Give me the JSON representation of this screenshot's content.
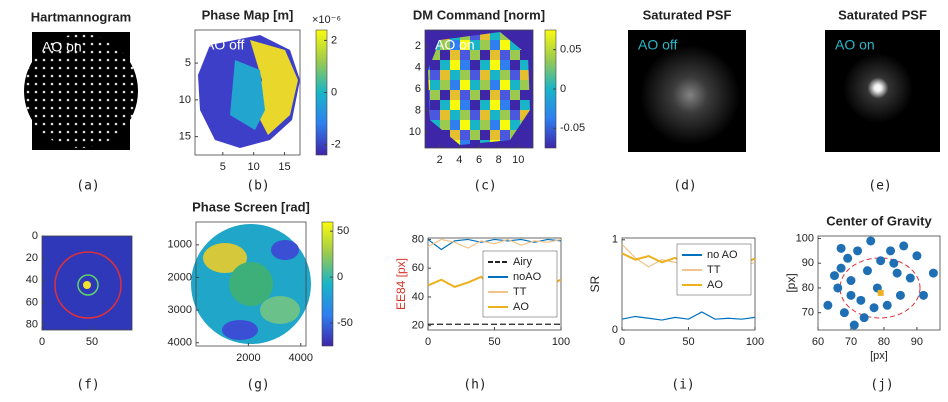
{
  "panels": [
    {
      "title": "Hartmannogram",
      "annotation": "AO on",
      "annotation_color": "#ffffff",
      "caption": "(a)"
    },
    {
      "title": "Phase Map [m]",
      "annotation": "AO off",
      "annotation_color": "#ffffff",
      "scale_label": "×10⁻⁶",
      "xlim": [
        0.5,
        17.5
      ],
      "xticks": [
        5,
        10,
        15
      ],
      "ylim": [
        0.5,
        17.5
      ],
      "yticks": [
        5,
        10,
        15
      ],
      "y_reversed": true,
      "clim": [
        -2.4,
        2.4
      ],
      "cticks": [
        2,
        0,
        -2
      ],
      "caption": "(b)"
    },
    {
      "title": "DM Command [norm]",
      "annotation": "AO on",
      "annotation_color": "#ffffff",
      "xlim": [
        0.5,
        11.5
      ],
      "xticks": [
        2,
        4,
        6,
        8,
        10
      ],
      "ylim": [
        0.5,
        11.5
      ],
      "yticks": [
        2,
        4,
        6,
        8,
        10
      ],
      "y_reversed": true,
      "clim": [
        -0.075,
        0.075
      ],
      "cticks": [
        0.05,
        0,
        -0.05
      ],
      "caption": "(c)"
    },
    {
      "title": "Saturated PSF",
      "annotation": "AO off",
      "annotation_color": "#2ab7c9",
      "caption": "(d)"
    },
    {
      "title": "Saturated PSF",
      "annotation": "AO on",
      "annotation_color": "#2ab7c9",
      "caption": "(e)"
    },
    {
      "xlim": [
        0,
        90
      ],
      "xticks": [
        0,
        50
      ],
      "ylim": [
        0,
        85
      ],
      "yticks": [
        0,
        20,
        40,
        60,
        80
      ],
      "y_reversed": true,
      "caption": "(f)"
    },
    {
      "title": "Phase Screen [rad]",
      "xlim": [
        0,
        4200
      ],
      "xticks": [
        2000,
        4000
      ],
      "ylim": [
        300,
        4100
      ],
      "yticks": [
        1000,
        2000,
        3000,
        4000
      ],
      "y_reversed": true,
      "clim": [
        -75,
        60
      ],
      "cticks": [
        50,
        0,
        -50
      ],
      "caption": "(g)"
    },
    {
      "type": "line",
      "ylabel": "EE84 [px]",
      "ylabel_color": "#d9352a",
      "xlim": [
        0,
        100
      ],
      "xticks": [
        0,
        50,
        100
      ],
      "ylim": [
        17,
        81
      ],
      "yticks": [
        20,
        40,
        60,
        80
      ],
      "legend": "right",
      "x": [
        0,
        10,
        20,
        30,
        40,
        50,
        60,
        70,
        80,
        90,
        100
      ],
      "series": [
        {
          "name": "Airy",
          "color": "#222222",
          "dashed": true,
          "values": [
            21,
            21,
            21,
            21,
            21,
            21,
            21,
            21,
            21,
            21,
            21
          ]
        },
        {
          "name": "noAO",
          "color": "#0072BD",
          "values": [
            80,
            73,
            79,
            80,
            78,
            80,
            79,
            80,
            78,
            80,
            79
          ]
        },
        {
          "name": "TT",
          "color": "#F2C38A",
          "values": [
            75,
            80,
            78,
            74,
            79,
            77,
            80,
            76,
            79,
            78,
            80
          ]
        },
        {
          "name": "AO",
          "color": "#EDB120",
          "values": [
            48,
            52,
            47,
            50,
            54,
            46,
            51,
            49,
            53,
            48,
            52
          ]
        }
      ],
      "caption": "(h)"
    },
    {
      "type": "line",
      "ylabel": "SR",
      "ylabel_color": "#222222",
      "xlim": [
        0,
        100
      ],
      "xticks": [
        0,
        50,
        100
      ],
      "ylim": [
        0,
        1.02
      ],
      "yticks": [
        0,
        1
      ],
      "legend": "upper right",
      "x": [
        0,
        10,
        20,
        30,
        40,
        50,
        60,
        70,
        80,
        90,
        100
      ],
      "series": [
        {
          "name": "no AO",
          "color": "#0072BD",
          "values": [
            0.12,
            0.15,
            0.13,
            0.11,
            0.14,
            0.12,
            0.2,
            0.12,
            0.13,
            0.12,
            0.14
          ]
        },
        {
          "name": "TT",
          "color": "#F2C38A",
          "values": [
            0.95,
            0.8,
            0.7,
            0.78,
            0.75,
            0.7,
            0.8,
            0.72,
            0.76,
            0.7,
            0.75
          ]
        },
        {
          "name": "AO",
          "color": "#EDB120",
          "values": [
            0.85,
            0.78,
            0.82,
            0.75,
            0.8,
            0.7,
            0.83,
            0.77,
            0.8,
            0.74,
            0.79
          ]
        }
      ],
      "caption": "(i)"
    },
    {
      "type": "scatter",
      "title": "Center of Gravity",
      "xlabel": "[px]",
      "ylabel": "[px]",
      "ylabel_color": "#222222",
      "color": "#1f6fb5",
      "xlim": [
        60,
        97
      ],
      "xticks": [
        60,
        70,
        80,
        90
      ],
      "ylim": [
        63,
        101
      ],
      "yticks": [
        70,
        80,
        90,
        100
      ],
      "x": [
        63,
        65,
        66,
        67,
        68,
        69,
        70,
        70,
        72,
        73,
        74,
        75,
        76,
        78,
        79,
        81,
        82,
        84,
        85,
        86,
        88,
        90,
        92,
        95,
        67,
        71,
        77,
        83
      ],
      "values": [
        73,
        85,
        80,
        88,
        70,
        92,
        77,
        83,
        95,
        75,
        68,
        87,
        99,
        80,
        91,
        73,
        95,
        86,
        77,
        97,
        84,
        93,
        77,
        86,
        96,
        65,
        72,
        90
      ],
      "center": {
        "x": 79,
        "y": 78,
        "color": "#EDB120"
      },
      "caption": "(j)"
    }
  ]
}
